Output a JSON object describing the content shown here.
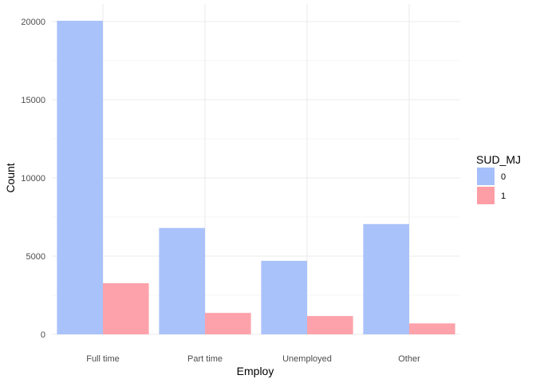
{
  "chart_data": {
    "type": "bar",
    "title": "",
    "xlabel": "Employ",
    "ylabel": "Count",
    "categories": [
      "Full time",
      "Part time",
      "Unemployed",
      "Other"
    ],
    "series": [
      {
        "name": "0",
        "values": [
          20050,
          6800,
          4700,
          7050
        ],
        "color": "#a5bffa"
      },
      {
        "name": "1",
        "values": [
          3270,
          1370,
          1170,
          700
        ],
        "color": "#fd9da5"
      }
    ],
    "ylim": [
      0,
      20500
    ],
    "yticks": [
      0,
      5000,
      10000,
      15000,
      20000
    ],
    "grid": true,
    "legend": {
      "title": "SUD_MJ",
      "position": "right"
    }
  }
}
